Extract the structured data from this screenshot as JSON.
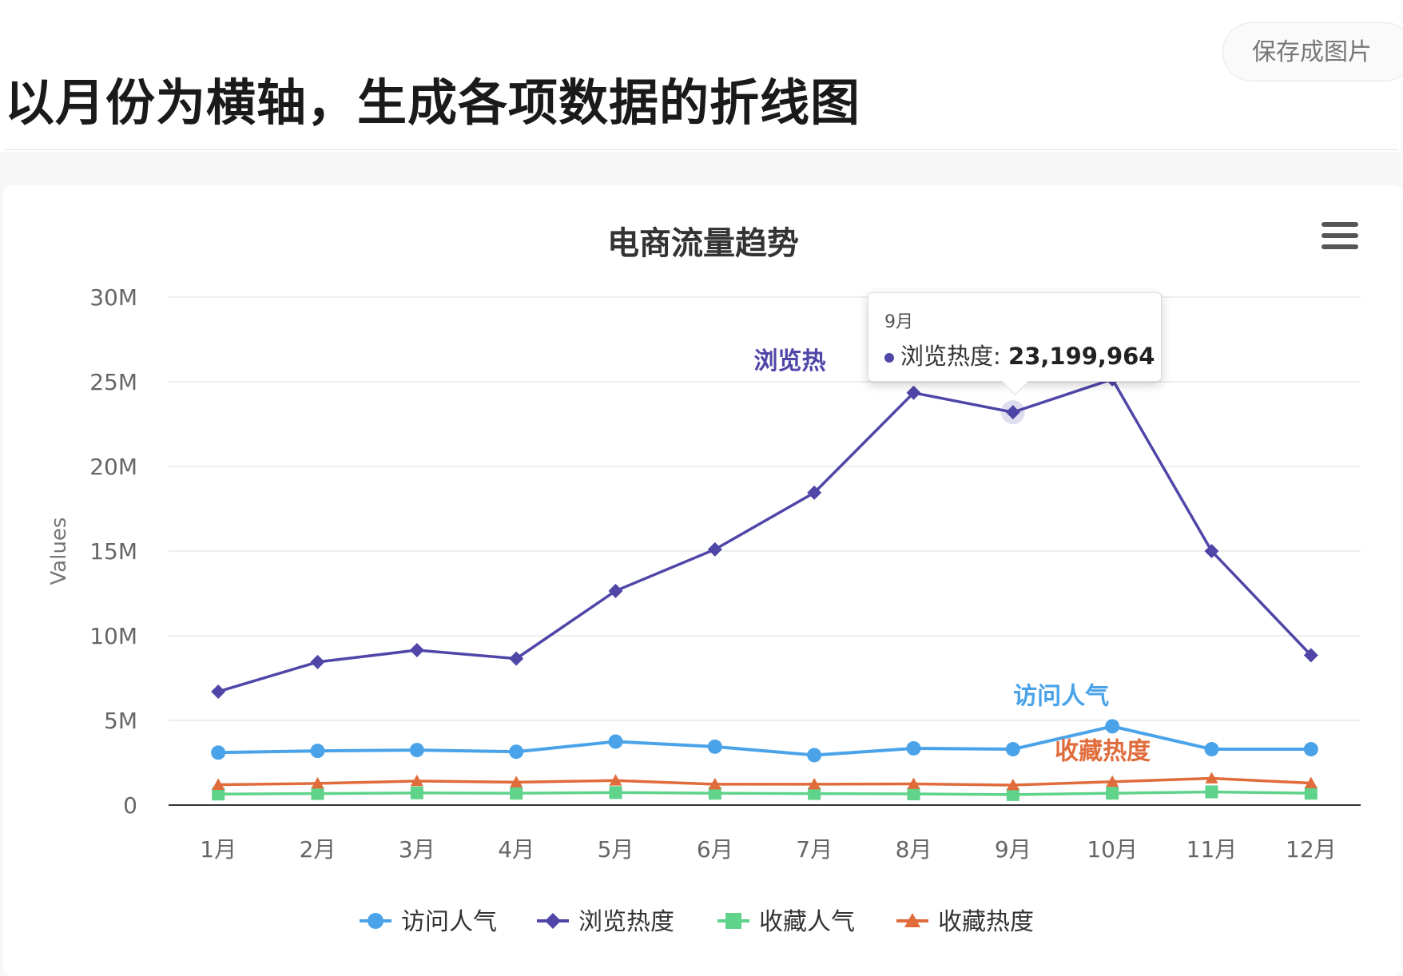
{
  "page": {
    "title": "以月份为横轴，生成各项数据的折线图",
    "save_button": "保存成图片"
  },
  "chart_data": {
    "type": "line",
    "title": "电商流量趋势",
    "ylabel": "Values",
    "ylim": [
      0,
      30000000
    ],
    "yticks": [
      {
        "value": 0,
        "label": "0"
      },
      {
        "value": 5000000,
        "label": "5M"
      },
      {
        "value": 10000000,
        "label": "10M"
      },
      {
        "value": 15000000,
        "label": "15M"
      },
      {
        "value": 20000000,
        "label": "20M"
      },
      {
        "value": 25000000,
        "label": "25M"
      },
      {
        "value": 30000000,
        "label": "30M"
      }
    ],
    "grid": true,
    "legend": "bottom",
    "categories": [
      "1月",
      "2月",
      "3月",
      "4月",
      "5月",
      "6月",
      "7月",
      "8月",
      "9月",
      "10月",
      "11月",
      "12月"
    ],
    "series": [
      {
        "name": "访问人气",
        "color": "#4aa3e8",
        "marker": "circle",
        "values": [
          3100000,
          3200000,
          3250000,
          3150000,
          3750000,
          3450000,
          2950000,
          3350000,
          3300000,
          4650000,
          3300000,
          3300000
        ]
      },
      {
        "name": "浏览热度",
        "color": "#4f46a8",
        "marker": "diamond",
        "values": [
          6700000,
          8450000,
          9150000,
          8650000,
          12650000,
          15100000,
          18450000,
          24350000,
          23199964,
          25150000,
          15000000,
          8850000
        ]
      },
      {
        "name": "收藏人气",
        "color": "#5fd38a",
        "marker": "square",
        "values": [
          650000,
          680000,
          720000,
          700000,
          740000,
          700000,
          680000,
          660000,
          620000,
          700000,
          780000,
          700000
        ]
      },
      {
        "name": "收藏热度",
        "color": "#e06c3c",
        "marker": "triangle",
        "values": [
          1200000,
          1280000,
          1420000,
          1350000,
          1450000,
          1230000,
          1230000,
          1250000,
          1180000,
          1380000,
          1580000,
          1300000
        ]
      }
    ],
    "series_labels": [
      {
        "text": "访问人气",
        "series": 0
      },
      {
        "text": "浏览热",
        "series": 1
      },
      {
        "text": "收藏热度",
        "series": 3
      }
    ],
    "tooltip": {
      "header": "9月",
      "series_name": "浏览热度",
      "value_text": "23,199,964",
      "color": "#4f46a8"
    }
  }
}
